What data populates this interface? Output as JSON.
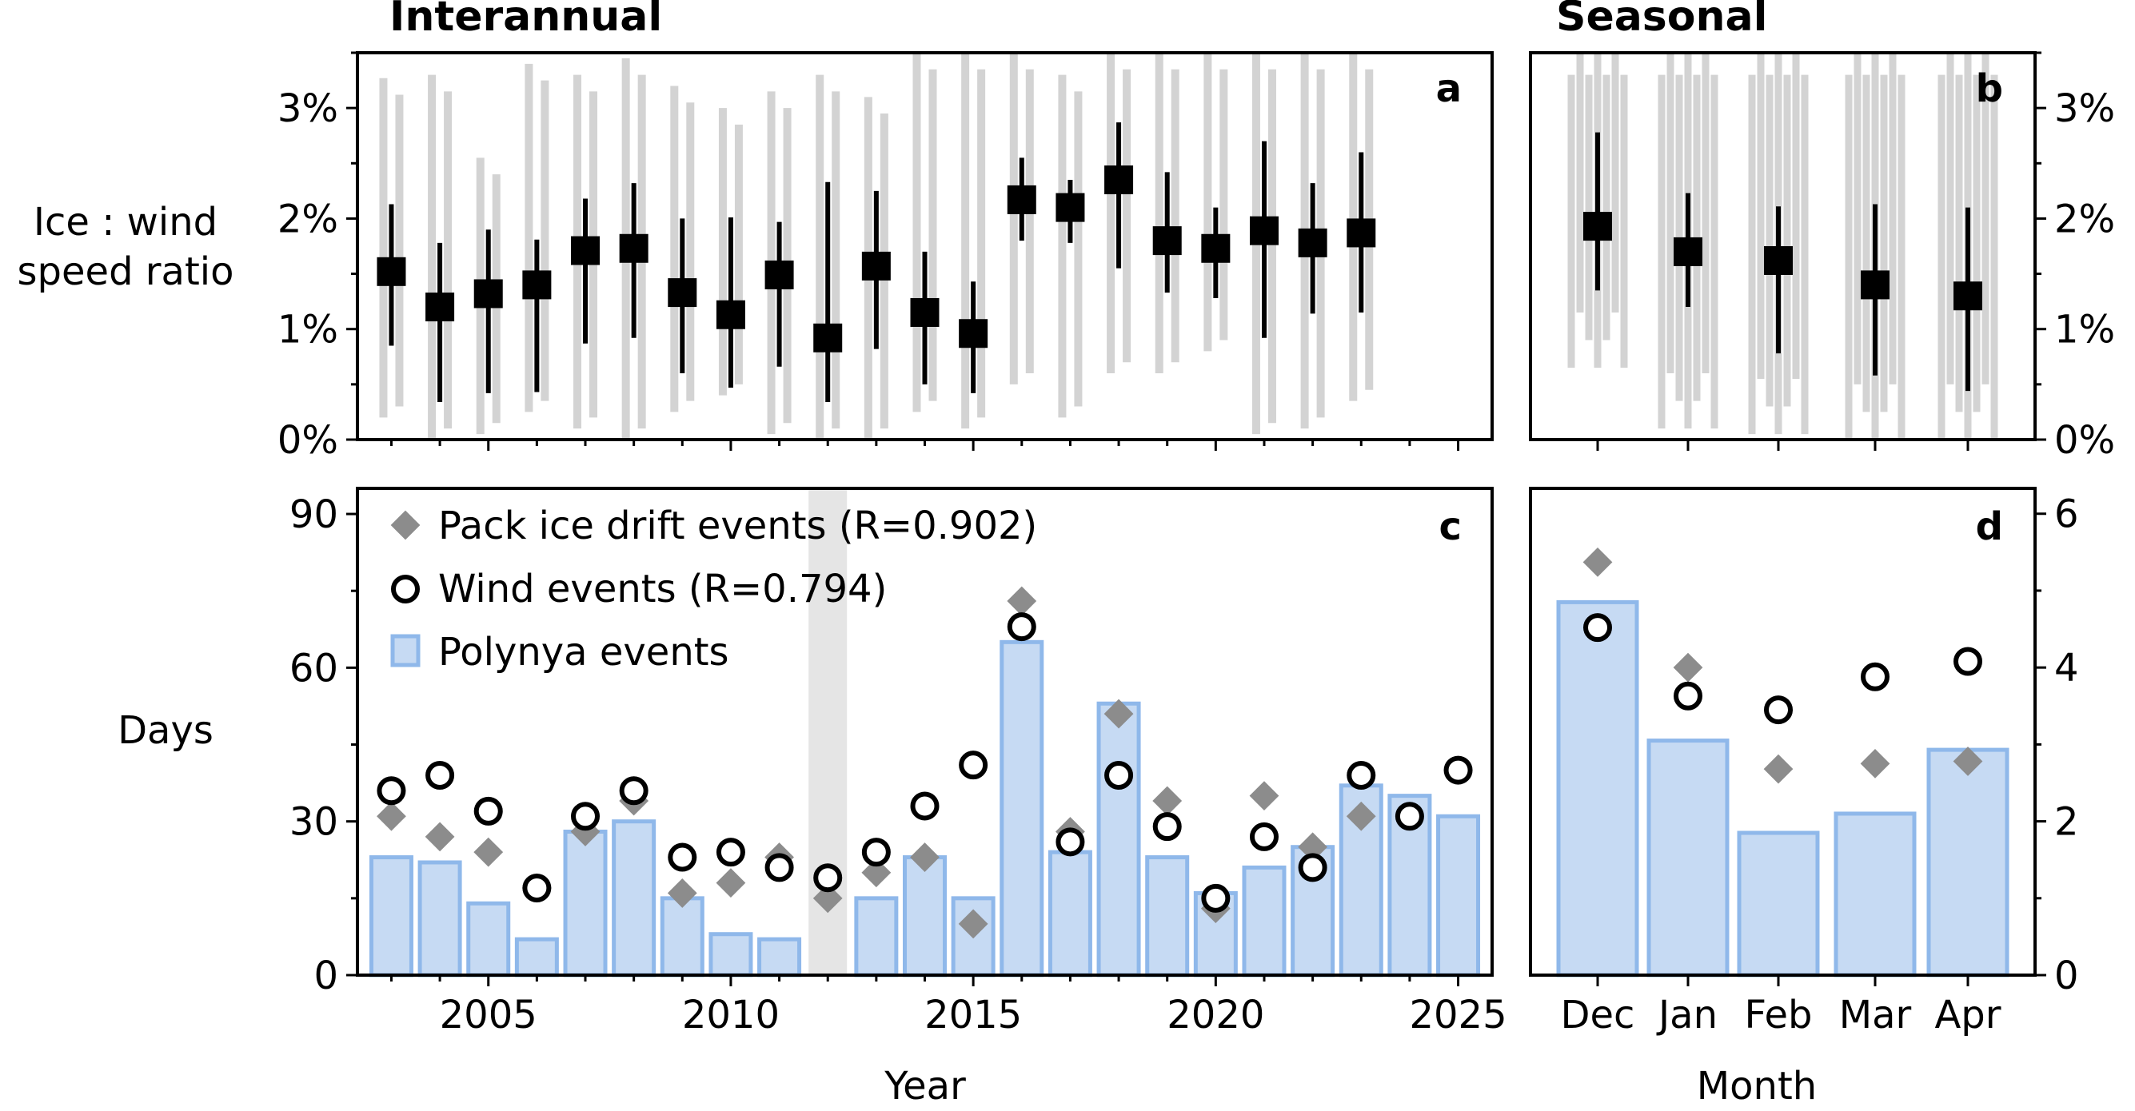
{
  "titles": {
    "interannual": "Interannual",
    "seasonal": "Seasonal"
  },
  "panel_labels": {
    "a": "a",
    "b": "b",
    "c": "c",
    "d": "d"
  },
  "axis_labels": {
    "ratio_line1": "Ice : wind",
    "ratio_line2": "speed ratio",
    "days": "Days",
    "year": "Year",
    "month": "Month"
  },
  "legend": {
    "pack": "Pack ice drift events (R=0.902)",
    "wind": "Wind events (R=0.794)",
    "polynya": "Polynya events"
  },
  "colors": {
    "gray_trace": "#d3d3d3",
    "marker": "#000000",
    "pack_diamond": "#8c8c8c",
    "bar_fill": "#c6daf3",
    "bar_edge": "#8fb8ea",
    "shade": "#e5e5e5"
  },
  "chart_data": [
    {
      "panel": "a",
      "type": "scatter",
      "title": "Interannual",
      "ylabel": "Ice : wind speed ratio",
      "ylim": [
        0,
        3.5
      ],
      "yticks": [
        0,
        1,
        2,
        3
      ],
      "yticklabels": [
        "0%",
        "1%",
        "2%",
        "3%"
      ],
      "x": [
        2003,
        2004,
        2005,
        2006,
        2007,
        2008,
        2009,
        2010,
        2011,
        2012,
        2013,
        2014,
        2015,
        2016,
        2017,
        2018,
        2019,
        2020,
        2021,
        2022,
        2023
      ],
      "y": [
        1.52,
        1.2,
        1.32,
        1.4,
        1.71,
        1.73,
        1.33,
        1.13,
        1.49,
        0.92,
        1.57,
        1.15,
        0.96,
        2.17,
        2.1,
        2.35,
        1.8,
        1.73,
        1.89,
        1.78,
        1.87
      ],
      "err_low": [
        0.85,
        0.34,
        0.42,
        0.43,
        0.87,
        0.92,
        0.6,
        0.47,
        0.66,
        0.34,
        0.82,
        0.5,
        0.42,
        1.8,
        1.78,
        1.55,
        1.33,
        1.28,
        0.92,
        1.14,
        1.15
      ],
      "err_high": [
        2.13,
        1.78,
        1.9,
        1.81,
        2.18,
        2.32,
        2.0,
        2.01,
        1.97,
        2.33,
        2.25,
        1.7,
        1.43,
        2.55,
        2.35,
        2.87,
        2.42,
        2.1,
        2.7,
        2.32,
        2.6
      ],
      "range_low": [
        0.2,
        0.0,
        0.05,
        0.25,
        0.1,
        0.0,
        0.25,
        0.4,
        0.05,
        0.0,
        0.0,
        0.25,
        0.1,
        0.5,
        0.2,
        0.6,
        0.6,
        0.8,
        0.05,
        0.1,
        0.35
      ],
      "range_high": [
        3.27,
        3.3,
        2.55,
        3.4,
        3.3,
        3.45,
        3.2,
        3.0,
        3.15,
        3.3,
        3.1,
        3.5,
        3.5,
        3.5,
        3.3,
        3.5,
        3.5,
        3.5,
        3.5,
        3.5,
        3.5
      ],
      "xlim": [
        2002.3,
        2025.7
      ]
    },
    {
      "panel": "b",
      "type": "scatter",
      "title": "Seasonal",
      "ylim": [
        0,
        3.5
      ],
      "yticks": [
        0,
        1,
        2,
        3
      ],
      "yticklabels": [
        "0%",
        "1%",
        "2%",
        "3%"
      ],
      "categories": [
        "Dec",
        "Jan",
        "Feb",
        "Mar",
        "Apr"
      ],
      "y": [
        1.93,
        1.7,
        1.62,
        1.4,
        1.3
      ],
      "err_low": [
        1.35,
        1.2,
        0.78,
        0.58,
        0.44
      ],
      "err_high": [
        2.78,
        2.23,
        2.11,
        2.13,
        2.1
      ],
      "range_low": [
        0.65,
        0.1,
        0.05,
        0.0,
        0.0
      ],
      "range_high": [
        3.5,
        3.5,
        3.5,
        3.5,
        3.5
      ]
    },
    {
      "panel": "c",
      "type": "bar",
      "xlabel": "Year",
      "ylabel": "Days",
      "ylim": [
        0,
        95
      ],
      "yticks": [
        0,
        30,
        60,
        90
      ],
      "xlim": [
        2002.3,
        2025.7
      ],
      "xticks": [
        2005,
        2010,
        2015,
        2020,
        2025
      ],
      "shaded_year": 2012,
      "x": [
        2003,
        2004,
        2005,
        2006,
        2007,
        2008,
        2009,
        2010,
        2011,
        2012,
        2013,
        2014,
        2015,
        2016,
        2017,
        2018,
        2019,
        2020,
        2021,
        2022,
        2023,
        2024,
        2025
      ],
      "series": [
        {
          "name": "Polynya events",
          "kind": "bar",
          "values": [
            23,
            22,
            14,
            7,
            28,
            30,
            15,
            8,
            7,
            null,
            15,
            23,
            15,
            65,
            24,
            53,
            23,
            16,
            21,
            25,
            37,
            35,
            31
          ]
        },
        {
          "name": "Pack ice drift events (R=0.902)",
          "kind": "diamond",
          "values": [
            31,
            27,
            24,
            17,
            28,
            34,
            16,
            18,
            23,
            15,
            20,
            23,
            10,
            73,
            28,
            51,
            34,
            13,
            35,
            25,
            31,
            null,
            null
          ]
        },
        {
          "name": "Wind events (R=0.794)",
          "kind": "circle",
          "values": [
            36,
            39,
            32,
            17,
            31,
            36,
            23,
            24,
            21,
            19,
            24,
            33,
            41,
            68,
            26,
            39,
            29,
            15,
            27,
            21,
            39,
            31,
            40
          ]
        }
      ]
    },
    {
      "panel": "d",
      "type": "bar",
      "xlabel": "Month",
      "ylim": [
        0,
        6.33
      ],
      "yticks": [
        0,
        2,
        4,
        6
      ],
      "categories": [
        "Dec",
        "Jan",
        "Feb",
        "Mar",
        "Apr"
      ],
      "series": [
        {
          "name": "Polynya events",
          "kind": "bar",
          "values": [
            4.85,
            3.05,
            1.85,
            2.1,
            2.93
          ]
        },
        {
          "name": "Pack ice drift events",
          "kind": "diamond",
          "values": [
            5.37,
            4.0,
            2.68,
            2.75,
            2.78
          ]
        },
        {
          "name": "Wind events",
          "kind": "circle",
          "values": [
            4.52,
            3.63,
            3.45,
            3.88,
            4.08
          ]
        }
      ]
    }
  ]
}
